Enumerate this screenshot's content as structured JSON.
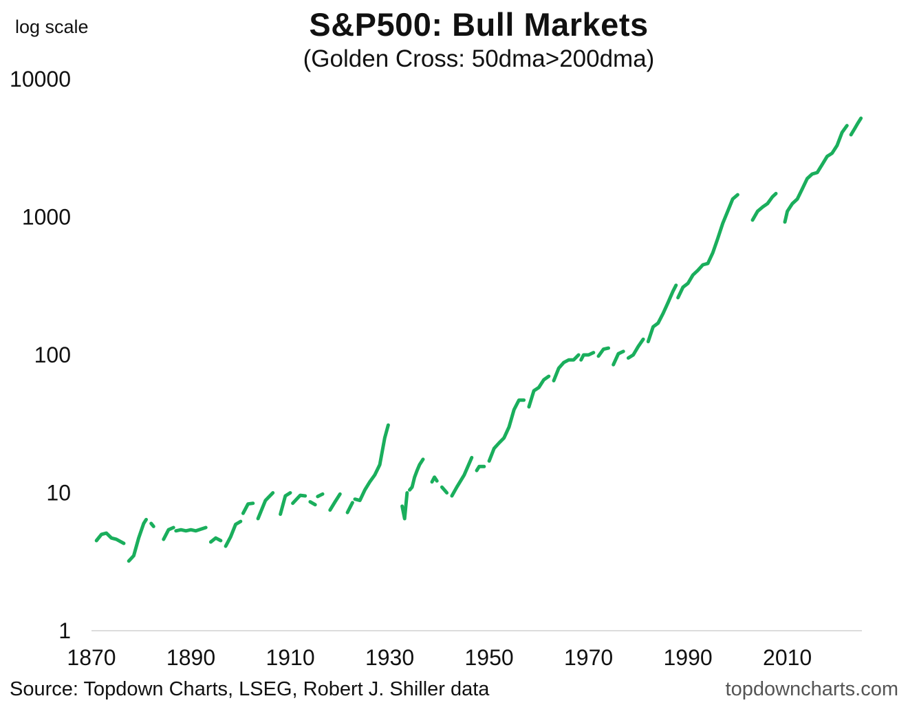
{
  "chart_data": {
    "type": "line",
    "title": "S&P500: Bull Markets",
    "subtitle": "(Golden Cross: 50dma>200dma)",
    "scale_note": "log scale",
    "yscale": "log",
    "ylim": [
      1,
      10000
    ],
    "xlim": [
      1870,
      2025
    ],
    "y_ticks": [
      {
        "value": 1,
        "label": "1"
      },
      {
        "value": 10,
        "label": "10"
      },
      {
        "value": 100,
        "label": "100"
      },
      {
        "value": 1000,
        "label": "1000"
      },
      {
        "value": 10000,
        "label": "10000"
      }
    ],
    "x_ticks": [
      {
        "value": 1870,
        "label": "1870"
      },
      {
        "value": 1890,
        "label": "1890"
      },
      {
        "value": 1910,
        "label": "1910"
      },
      {
        "value": 1930,
        "label": "1930"
      },
      {
        "value": 1950,
        "label": "1950"
      },
      {
        "value": 1970,
        "label": "1970"
      },
      {
        "value": 1990,
        "label": "1990"
      },
      {
        "value": 2010,
        "label": "2010"
      }
    ],
    "grid": false,
    "line_color": "#1aae5c",
    "segments": [
      {
        "x": [
          1871.0,
          1872.0,
          1873.0,
          1874.0,
          1875.0,
          1876.5
        ],
        "y": [
          4.5,
          5.0,
          5.1,
          4.7,
          4.6,
          4.3
        ]
      },
      {
        "x": [
          1877.5,
          1878.5,
          1879.5,
          1880.5,
          1881.0
        ],
        "y": [
          3.2,
          3.5,
          4.7,
          6.0,
          6.4
        ]
      },
      {
        "x": [
          1882.0,
          1882.5
        ],
        "y": [
          6.0,
          5.7
        ]
      },
      {
        "x": [
          1884.5,
          1885.5,
          1886.5
        ],
        "y": [
          4.6,
          5.4,
          5.6
        ]
      },
      {
        "x": [
          1887.0,
          1888.0,
          1889.0,
          1890.0,
          1891.0,
          1893.0
        ],
        "y": [
          5.3,
          5.4,
          5.3,
          5.4,
          5.3,
          5.6
        ]
      },
      {
        "x": [
          1894.0,
          1895.0,
          1896.0
        ],
        "y": [
          4.4,
          4.7,
          4.5
        ]
      },
      {
        "x": [
          1897.0,
          1898.0,
          1899.0,
          1900.0
        ],
        "y": [
          4.1,
          4.8,
          5.9,
          6.2
        ]
      },
      {
        "x": [
          1900.5,
          1901.5,
          1902.5
        ],
        "y": [
          7.1,
          8.3,
          8.4
        ]
      },
      {
        "x": [
          1903.5,
          1905.0,
          1906.5
        ],
        "y": [
          6.5,
          8.8,
          10.0
        ]
      },
      {
        "x": [
          1908.0,
          1909.0,
          1910.0
        ],
        "y": [
          7.0,
          9.5,
          10.0
        ]
      },
      {
        "x": [
          1910.5,
          1912.0,
          1913.0
        ],
        "y": [
          8.4,
          9.6,
          9.5
        ]
      },
      {
        "x": [
          1914.0,
          1915.0
        ],
        "y": [
          8.6,
          8.2
        ]
      },
      {
        "x": [
          1915.5,
          1916.5
        ],
        "y": [
          9.4,
          9.8
        ]
      },
      {
        "x": [
          1918.0,
          1919.0,
          1920.0
        ],
        "y": [
          7.5,
          8.6,
          9.8
        ]
      },
      {
        "x": [
          1921.5,
          1922.5
        ],
        "y": [
          7.2,
          8.5
        ]
      },
      {
        "x": [
          1923.0,
          1924.0,
          1925.0,
          1926.0,
          1927.0,
          1928.0,
          1929.0,
          1929.7
        ],
        "y": [
          9.0,
          8.8,
          10.5,
          12.0,
          13.5,
          16.0,
          25.0,
          31.0
        ]
      },
      {
        "x": [
          1932.5,
          1933.0,
          1933.5
        ],
        "y": [
          8.0,
          6.5,
          10.0
        ]
      },
      {
        "x": [
          1934.0,
          1934.5,
          1935.0,
          1935.5,
          1936.0,
          1936.7
        ],
        "y": [
          10.5,
          11.0,
          13.0,
          14.5,
          16.0,
          17.5
        ]
      },
      {
        "x": [
          1938.5,
          1939.0,
          1939.5
        ],
        "y": [
          12.0,
          13.0,
          12.2
        ]
      },
      {
        "x": [
          1940.5,
          1941.0,
          1941.5
        ],
        "y": [
          11.0,
          10.5,
          10.0
        ]
      },
      {
        "x": [
          1942.5,
          1943.5,
          1945.0,
          1946.5
        ],
        "y": [
          9.5,
          11.0,
          13.5,
          18.0
        ]
      },
      {
        "x": [
          1947.5,
          1948.0,
          1949.0
        ],
        "y": [
          14.5,
          15.5,
          15.5
        ]
      },
      {
        "x": [
          1950.0,
          1951.0,
          1952.0,
          1953.0,
          1954.0,
          1955.0,
          1956.0,
          1957.0
        ],
        "y": [
          17.0,
          21.0,
          23.0,
          25.0,
          30.0,
          40.0,
          47.0,
          47.0
        ]
      },
      {
        "x": [
          1958.0,
          1959.0,
          1960.0,
          1961.0,
          1962.0
        ],
        "y": [
          42.0,
          55.0,
          58.0,
          66.0,
          70.0
        ]
      },
      {
        "x": [
          1963.0,
          1964.0,
          1965.0,
          1966.0,
          1967.0,
          1968.0
        ],
        "y": [
          65.0,
          80.0,
          88.0,
          92.0,
          92.0,
          100.0
        ]
      },
      {
        "x": [
          1968.5,
          1969.0,
          1970.0,
          1971.0
        ],
        "y": [
          92.0,
          100.0,
          100.0,
          104.0
        ]
      },
      {
        "x": [
          1972.0,
          1973.0,
          1974.0
        ],
        "y": [
          98.0,
          110.0,
          112.0
        ]
      },
      {
        "x": [
          1975.0,
          1976.0,
          1977.0
        ],
        "y": [
          85.0,
          102.0,
          106.0
        ]
      },
      {
        "x": [
          1978.0,
          1979.0,
          1980.0,
          1981.0
        ],
        "y": [
          95.0,
          100.0,
          115.0,
          130.0
        ]
      },
      {
        "x": [
          1982.0,
          1983.0,
          1984.0,
          1985.0,
          1986.0,
          1987.0,
          1987.6
        ],
        "y": [
          125.0,
          160.0,
          170.0,
          200.0,
          240.0,
          290.0,
          320.0
        ]
      },
      {
        "x": [
          1988.0,
          1989.0,
          1990.0,
          1991.0,
          1992.0,
          1993.0,
          1994.0,
          1995.0,
          1996.0,
          1997.0,
          1998.0,
          1999.0,
          2000.0
        ],
        "y": [
          260.0,
          310.0,
          330.0,
          380.0,
          410.0,
          450.0,
          460.0,
          550.0,
          700.0,
          900.0,
          1100.0,
          1350.0,
          1450.0
        ]
      },
      {
        "x": [
          2003.0,
          2004.0,
          2005.0,
          2006.0,
          2007.0,
          2007.7
        ],
        "y": [
          950.0,
          1100.0,
          1180.0,
          1250.0,
          1400.0,
          1480.0
        ]
      },
      {
        "x": [
          2009.5,
          2010.0,
          2011.0,
          2012.0,
          2013.0,
          2014.0,
          2015.0,
          2016.0,
          2017.0,
          2018.0,
          2019.0,
          2020.0,
          2021.0,
          2022.0
        ],
        "y": [
          920.0,
          1100.0,
          1250.0,
          1350.0,
          1600.0,
          1900.0,
          2050.0,
          2100.0,
          2400.0,
          2750.0,
          2900.0,
          3300.0,
          4100.0,
          4600.0
        ]
      },
      {
        "x": [
          2022.8,
          2023.5,
          2024.2,
          2024.8
        ],
        "y": [
          3950.0,
          4350.0,
          4800.0,
          5200.0
        ]
      }
    ]
  },
  "footer": {
    "source": "Source: Topdown Charts, LSEG, Robert J. Shiller data",
    "brand": "topdowncharts.com"
  }
}
